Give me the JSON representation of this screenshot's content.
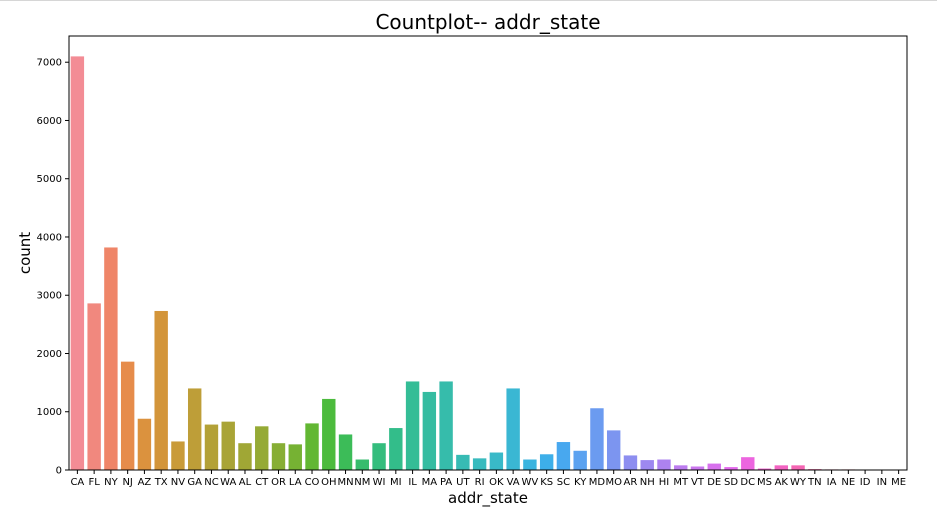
{
  "chart_data": {
    "type": "bar",
    "title": "Countplot-- addr_state",
    "xlabel": "addr_state",
    "ylabel": "count",
    "ylim": [
      0,
      7450
    ],
    "yticks": [
      0,
      1000,
      2000,
      3000,
      4000,
      5000,
      6000,
      7000
    ],
    "grid": false,
    "categories": [
      "CA",
      "FL",
      "NY",
      "NJ",
      "AZ",
      "TX",
      "NV",
      "GA",
      "NC",
      "WA",
      "AL",
      "CT",
      "OR",
      "LA",
      "CO",
      "OH",
      "MN",
      "NM",
      "WI",
      "MI",
      "IL",
      "MA",
      "PA",
      "UT",
      "RI",
      "OK",
      "VA",
      "WV",
      "KS",
      "SC",
      "KY",
      "MD",
      "MO",
      "AR",
      "NH",
      "HI",
      "MT",
      "VT",
      "DE",
      "SD",
      "DC",
      "MS",
      "AK",
      "WY",
      "TN",
      "IA",
      "NE",
      "ID",
      "IN",
      "ME"
    ],
    "values": [
      7100,
      2860,
      3820,
      1860,
      880,
      2730,
      490,
      1400,
      780,
      830,
      460,
      750,
      460,
      440,
      800,
      1220,
      610,
      180,
      460,
      720,
      1520,
      1340,
      1520,
      260,
      200,
      300,
      1400,
      180,
      270,
      480,
      330,
      1060,
      680,
      250,
      170,
      180,
      80,
      60,
      110,
      50,
      220,
      25,
      80,
      80,
      15,
      10,
      10,
      8,
      8,
      6
    ],
    "colors": [
      "#f38c95",
      "#f1887e",
      "#ef8568",
      "#e68c4b",
      "#db923e",
      "#d3953a",
      "#c99b39",
      "#be9e38",
      "#b3a137",
      "#a9a436",
      "#a0a735",
      "#95aa35",
      "#87ae34",
      "#76b233",
      "#62b733",
      "#4cbb3d",
      "#3cbc58",
      "#37bc6d",
      "#34bd7d",
      "#33bd8a",
      "#34bd96",
      "#35bca1",
      "#36bcab",
      "#37bbb4",
      "#38bbbe",
      "#39b9c8",
      "#3ab7d3",
      "#3bb4df",
      "#3dafe9",
      "#48a8ef",
      "#5ba2f0",
      "#6b9bf0",
      "#7c95f0",
      "#8d8ef0",
      "#9d88f0",
      "#ad82ef",
      "#bc7cef",
      "#ca76ee",
      "#d770ed",
      "#e36aec",
      "#ec65df",
      "#f062cf",
      "#f263c1",
      "#f466b3",
      "#f568a6",
      "#f56a9a",
      "#f56c8f",
      "#f56d86",
      "#f46f7f",
      "#f47079"
    ]
  }
}
